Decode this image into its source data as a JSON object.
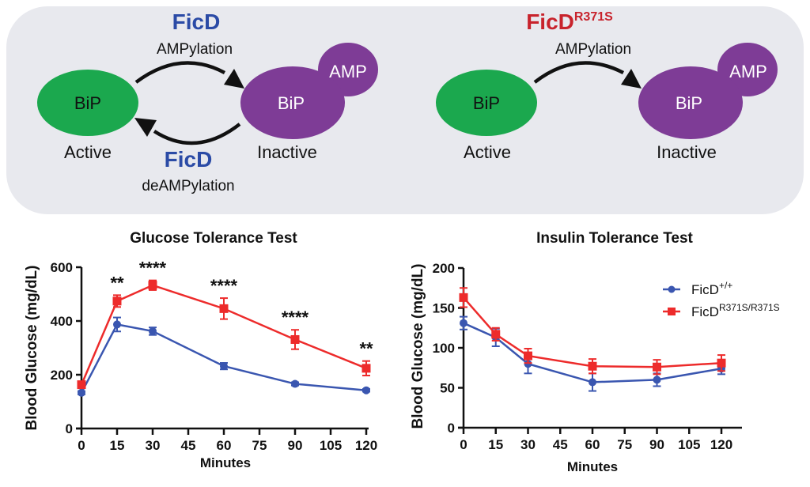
{
  "diagram": {
    "panel_color": "#E8E9EE",
    "colors": {
      "active": "#1BA84E",
      "inactive": "#7E3C96",
      "wt_enzyme": "#2B4BA6",
      "mutant_enzyme": "#C8232C",
      "arrow": "#111111"
    },
    "left": {
      "enzyme_top": "FicD",
      "reaction_top": "AMPylation",
      "enzyme_bottom": "FicD",
      "reaction_bottom": "deAMPylation",
      "active_node": "BiP",
      "active_label": "Active",
      "inactive_node": "BiP",
      "adduct": "AMP",
      "inactive_label": "Inactive"
    },
    "right": {
      "enzyme_top": "FicD",
      "enzyme_top_superscript": "R371S",
      "reaction_top": "AMPylation",
      "active_node": "BiP",
      "active_label": "Active",
      "inactive_node": "BiP",
      "adduct": "AMP",
      "inactive_label": "Inactive"
    }
  },
  "chart_data": [
    {
      "type": "line",
      "title": "Glucose Tolerance Test",
      "xlabel": "Minutes",
      "ylabel": "Blood Glucose (mg/dL)",
      "xlim": [
        0,
        120
      ],
      "ylim": [
        0,
        600
      ],
      "xticks": [
        0,
        15,
        30,
        45,
        60,
        75,
        90,
        105,
        120
      ],
      "xtick_labels": [
        "0",
        "15",
        "30",
        "45",
        "60",
        "75",
        "90",
        "105",
        "120"
      ],
      "yticks": [
        0,
        200,
        400,
        600
      ],
      "ytick_labels": [
        "0",
        "200",
        "400",
        "600"
      ],
      "grid": false,
      "legend": null,
      "x": [
        0,
        15,
        30,
        60,
        90,
        120
      ],
      "series": [
        {
          "name": "FicD+/+",
          "color": "#3A56B0",
          "marker": "circle",
          "values": [
            133,
            387,
            362,
            232,
            166,
            142
          ],
          "error": [
            6,
            26,
            14,
            12,
            6,
            5
          ]
        },
        {
          "name": "FicDR371S/R371S",
          "color": "#ED2B2B",
          "marker": "square",
          "values": [
            163,
            474,
            533,
            446,
            331,
            224
          ],
          "error": [
            8,
            22,
            18,
            39,
            36,
            27
          ]
        }
      ],
      "annotations": [
        {
          "x": 15,
          "text": "**"
        },
        {
          "x": 30,
          "text": "****"
        },
        {
          "x": 60,
          "text": "****"
        },
        {
          "x": 90,
          "text": "****"
        },
        {
          "x": 120,
          "text": "**"
        }
      ]
    },
    {
      "type": "line",
      "title": "Insulin Tolerance Test",
      "xlabel": "Minutes",
      "ylabel": "Blood Glucose (mg/dL)",
      "xlim": [
        0,
        120
      ],
      "ylim": [
        0,
        200
      ],
      "xticks": [
        0,
        15,
        30,
        45,
        60,
        75,
        90,
        105,
        120
      ],
      "xtick_labels": [
        "0",
        "15",
        "30",
        "45",
        "60",
        "75",
        "90",
        "105",
        "120"
      ],
      "yticks": [
        0,
        50,
        100,
        150,
        200
      ],
      "ytick_labels": [
        "0",
        "50",
        "100",
        "150",
        "200"
      ],
      "grid": false,
      "legend": "top-right",
      "legend_entries": [
        {
          "base": "FicD",
          "superscript": "+/+"
        },
        {
          "base": "FicD",
          "superscript": "R371S/R371S"
        }
      ],
      "x": [
        0,
        15,
        30,
        60,
        90,
        120
      ],
      "series": [
        {
          "name": "FicD+/+",
          "color": "#3A56B0",
          "marker": "circle",
          "values": [
            131,
            113,
            80,
            57,
            60,
            74
          ],
          "error": [
            8,
            11,
            12,
            11,
            8,
            7
          ]
        },
        {
          "name": "FicDR371S/R371S",
          "color": "#ED2B2B",
          "marker": "square",
          "values": [
            163,
            117,
            90,
            77,
            76,
            81
          ],
          "error": [
            12,
            8,
            9,
            9,
            9,
            10
          ]
        }
      ],
      "annotations": []
    }
  ]
}
